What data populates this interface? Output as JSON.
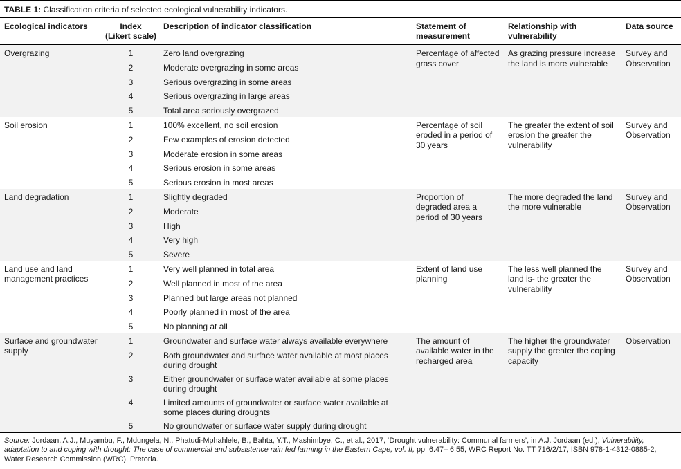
{
  "colors": {
    "row_shade": "#f2f2f2",
    "rule": "#000000",
    "text": "#1a1a1a"
  },
  "title": {
    "label": "TABLE 1:",
    "text": "Classification criteria of selected ecological vulnerability indicators."
  },
  "header": {
    "col1": "Ecological indicators",
    "col2_line1": "Index",
    "col2_line2": "(Likert scale)",
    "col3": "Description of indicator classification",
    "col4": "Statement of measurement",
    "col5": "Relationship with vulnerability",
    "col6": "Data source"
  },
  "groups": [
    {
      "indicator": "Overgrazing",
      "items": [
        {
          "index": "1",
          "description": "Zero land overgrazing"
        },
        {
          "index": "2",
          "description": "Moderate overgrazing in some areas"
        },
        {
          "index": "3",
          "description": "Serious overgrazing in some areas"
        },
        {
          "index": "4",
          "description": "Serious overgrazing in large areas"
        },
        {
          "index": "5",
          "description": "Total area seriously overgrazed"
        }
      ],
      "statement": "Percentage of affected grass cover",
      "relationship": "As grazing pressure increase the land is more vulnerable",
      "data_source": "Survey and Observation"
    },
    {
      "indicator": "Soil erosion",
      "items": [
        {
          "index": "1",
          "description": "100% excellent, no soil erosion"
        },
        {
          "index": "2",
          "description": "Few examples of erosion detected"
        },
        {
          "index": "3",
          "description": "Moderate erosion in some areas"
        },
        {
          "index": "4",
          "description": "Serious erosion in some areas"
        },
        {
          "index": "5",
          "description": "Serious erosion in most areas"
        }
      ],
      "statement": "Percentage of soil eroded in a period of 30 years",
      "relationship": "The greater the extent of soil erosion the greater the vulnerability",
      "data_source": "Survey and Observation"
    },
    {
      "indicator": "Land degradation",
      "items": [
        {
          "index": "1",
          "description": "Slightly degraded"
        },
        {
          "index": "2",
          "description": "Moderate"
        },
        {
          "index": "3",
          "description": "High"
        },
        {
          "index": "4",
          "description": "Very high"
        },
        {
          "index": "5",
          "description": "Severe"
        }
      ],
      "statement": "Proportion of degraded area a period of 30 years",
      "relationship": "The more degraded the land the more vulnerable",
      "data_source": "Survey and Observation"
    },
    {
      "indicator": "Land use and land management practices",
      "items": [
        {
          "index": "1",
          "description": "Very well planned in total area"
        },
        {
          "index": "2",
          "description": "Well planned in most of the area"
        },
        {
          "index": "3",
          "description": "Planned but large areas not planned"
        },
        {
          "index": "4",
          "description": "Poorly planned in most of the area"
        },
        {
          "index": "5",
          "description": "No planning at all"
        }
      ],
      "statement": "Extent of land use planning",
      "relationship": "The less well planned the land is- the greater the vulnerability",
      "data_source": "Survey and Observation"
    },
    {
      "indicator": "Surface and groundwater supply",
      "items": [
        {
          "index": "1",
          "description": "Groundwater and surface water always available everywhere"
        },
        {
          "index": "2",
          "description": "Both groundwater and surface water available at most places during drought"
        },
        {
          "index": "3",
          "description": "Either groundwater or surface water available at some places during drought"
        },
        {
          "index": "4",
          "description": "Limited amounts of groundwater or surface water available at some places during droughts"
        },
        {
          "index": "5",
          "description": "No groundwater or surface water supply during drought"
        }
      ],
      "statement": "The amount of available water in the recharged area",
      "relationship": "The higher the groundwater supply the greater the coping capacity",
      "data_source": "Observation"
    }
  ],
  "source_note": {
    "p1": "Source:",
    "p2": " Jordaan, A.J., Muyambu, F., Mdungela, N., Phatudi-Mphahlele, B., Bahta, Y.T., Mashimbye, C., et al., 2017, ‘Drought vulnerability: Communal farmers’, in A.J. Jordaan (ed.), ",
    "p3": "Vulnerability, adaptation to and coping with drought: The case of commercial and subsistence rain fed farming in the Eastern Cape, vol. II,",
    "p4": " pp. 6.47– 6.55, WRC Report No. TT 716/2/17, ISBN 978-1-4312-0885-2, Water Research Commission (WRC), Pretoria."
  }
}
